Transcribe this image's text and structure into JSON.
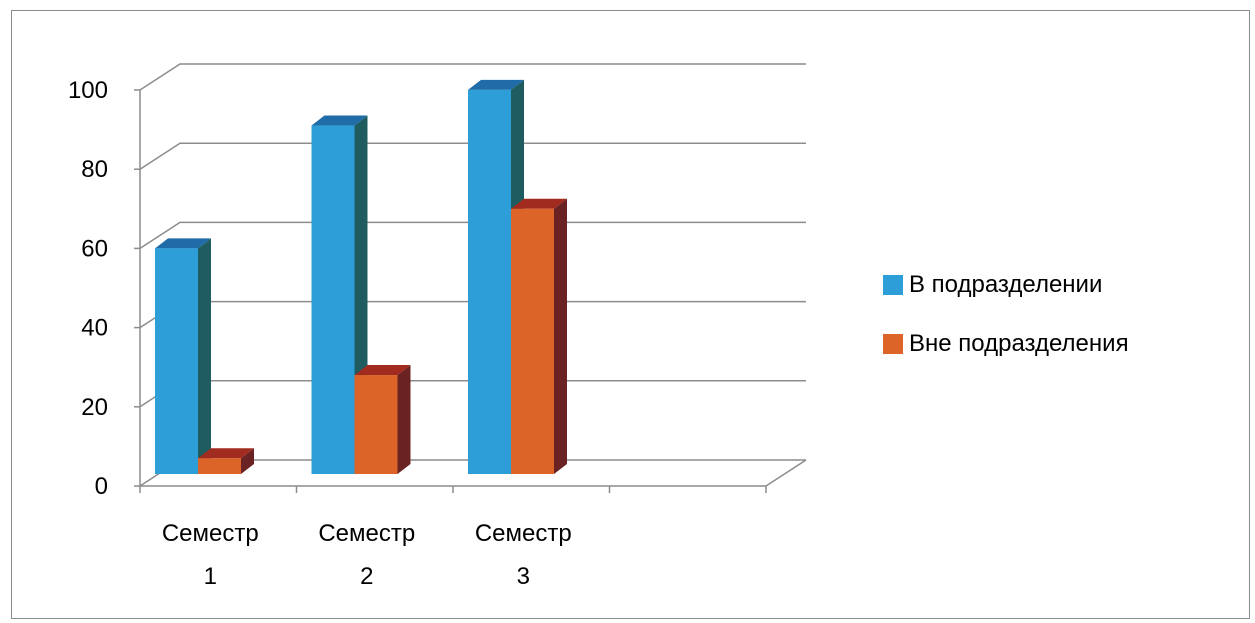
{
  "chart_data": {
    "type": "bar",
    "categories": [
      "Семестр 1",
      "Семестр 2",
      "Семестр 3"
    ],
    "category_lines": [
      [
        "Семестр",
        "1"
      ],
      [
        "Семестр",
        "2"
      ],
      [
        "Семестр",
        "3"
      ]
    ],
    "series": [
      {
        "name": "В подразделении",
        "values": [
          58,
          89,
          98
        ],
        "color": "#2d9ed8",
        "side_color": "#1e5c5f",
        "top_color": "#1f6ca8"
      },
      {
        "name": "Вне подразделения",
        "values": [
          5,
          26,
          68
        ],
        "color": "#dc6428",
        "side_color": "#6b2222",
        "top_color": "#a12b1e"
      }
    ],
    "ylim": [
      0,
      100
    ],
    "yticks": [
      "0",
      "20",
      "40",
      "60",
      "80",
      "100"
    ],
    "grid": true,
    "legend_position": "right",
    "three_d": true
  }
}
